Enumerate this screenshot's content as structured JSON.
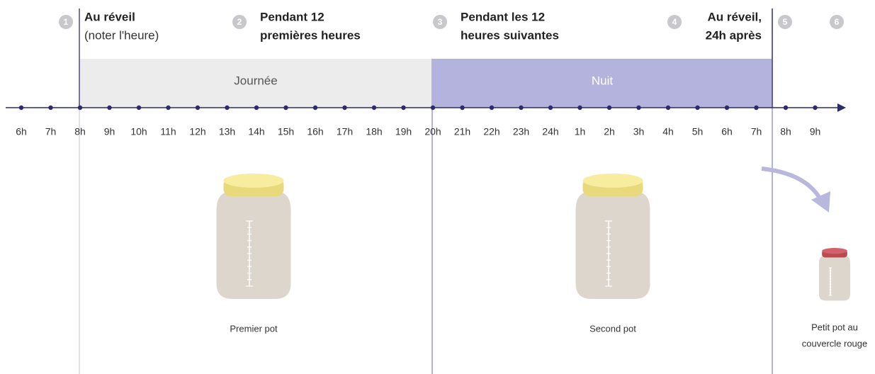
{
  "steps": [
    {
      "number": "1",
      "lines": [
        "Au réveil",
        "(noter l'heure)"
      ]
    },
    {
      "number": "2",
      "lines": [
        "Pendant 12",
        "premières heures"
      ]
    },
    {
      "number": "3",
      "lines": [
        "Pendant les 12",
        "heures suivantes"
      ]
    },
    {
      "number": "4",
      "lines": [
        "Au réveil,",
        "24h après"
      ]
    },
    {
      "number": "5",
      "lines": []
    },
    {
      "number": "6",
      "lines": []
    }
  ],
  "bands": [
    "Journée",
    "Nuit"
  ],
  "hours": [
    "6h",
    "7h",
    "8h",
    "9h",
    "10h",
    "11h",
    "12h",
    "13h",
    "14h",
    "15h",
    "16h",
    "17h",
    "18h",
    "19h",
    "20h",
    "21h",
    "22h",
    "23h",
    "24h",
    "1h",
    "2h",
    "3h",
    "4h",
    "5h",
    "6h",
    "7h",
    "8h",
    "9h"
  ],
  "jars": [
    {
      "lines": [
        "Premier pot"
      ]
    },
    {
      "lines": [
        "Second pot"
      ]
    },
    {
      "lines": [
        "Petit pot au",
        "couvercle rouge"
      ]
    }
  ]
}
